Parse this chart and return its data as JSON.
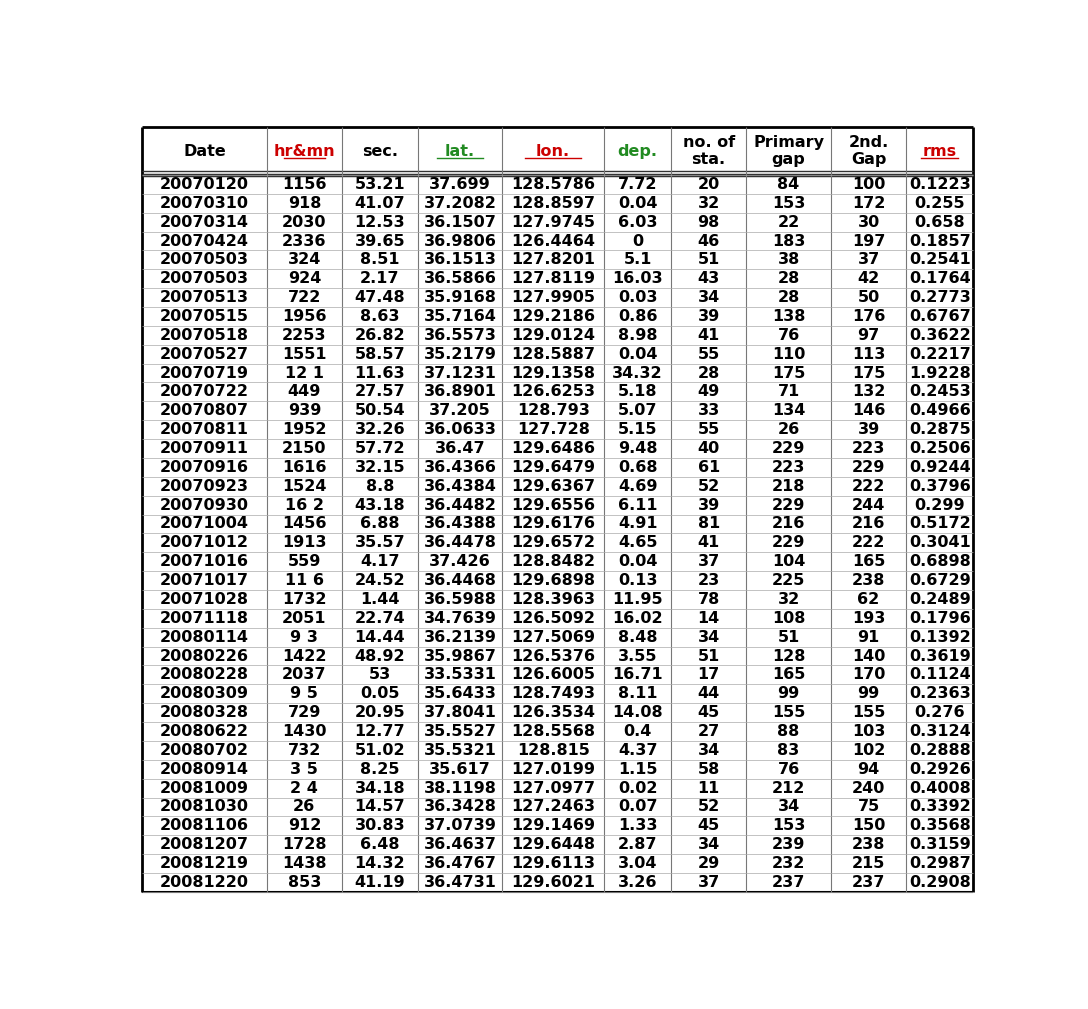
{
  "columns": [
    "Date",
    "hr&mn",
    "sec.",
    "lat.",
    "lon.",
    "dep.",
    "no. of\nsta.",
    "Primary\ngap",
    "2nd.\nGap",
    "rms"
  ],
  "col_keys": [
    "Date",
    "hr&mn",
    "sec.",
    "lat.",
    "lon.",
    "dep.",
    "no_of_sta",
    "Primary_gap",
    "2nd_Gap",
    "rms"
  ],
  "header_colors": [
    "black",
    "#cc0000",
    "black",
    "#228B22",
    "#cc0000",
    "#228B22",
    "black",
    "black",
    "black",
    "#cc0000"
  ],
  "header_underline": [
    false,
    true,
    false,
    true,
    true,
    false,
    false,
    false,
    false,
    true
  ],
  "col_widths_rel": [
    1.4,
    0.85,
    0.85,
    0.95,
    1.15,
    0.75,
    0.85,
    0.95,
    0.85,
    0.75
  ],
  "rows": [
    [
      "20070120",
      "1156",
      "53.21",
      "37.699",
      "128.5786",
      "7.72",
      "20",
      "84",
      "100",
      "0.1223"
    ],
    [
      "20070310",
      "918",
      "41.07",
      "37.2082",
      "128.8597",
      "0.04",
      "32",
      "153",
      "172",
      "0.255"
    ],
    [
      "20070314",
      "2030",
      "12.53",
      "36.1507",
      "127.9745",
      "6.03",
      "98",
      "22",
      "30",
      "0.658"
    ],
    [
      "20070424",
      "2336",
      "39.65",
      "36.9806",
      "126.4464",
      "0",
      "46",
      "183",
      "197",
      "0.1857"
    ],
    [
      "20070503",
      "324",
      "8.51",
      "36.1513",
      "127.8201",
      "5.1",
      "51",
      "38",
      "37",
      "0.2541"
    ],
    [
      "20070503",
      "924",
      "2.17",
      "36.5866",
      "127.8119",
      "16.03",
      "43",
      "28",
      "42",
      "0.1764"
    ],
    [
      "20070513",
      "722",
      "47.48",
      "35.9168",
      "127.9905",
      "0.03",
      "34",
      "28",
      "50",
      "0.2773"
    ],
    [
      "20070515",
      "1956",
      "8.63",
      "35.7164",
      "129.2186",
      "0.86",
      "39",
      "138",
      "176",
      "0.6767"
    ],
    [
      "20070518",
      "2253",
      "26.82",
      "36.5573",
      "129.0124",
      "8.98",
      "41",
      "76",
      "97",
      "0.3622"
    ],
    [
      "20070527",
      "1551",
      "58.57",
      "35.2179",
      "128.5887",
      "0.04",
      "55",
      "110",
      "113",
      "0.2217"
    ],
    [
      "20070719",
      "12 1",
      "11.63",
      "37.1231",
      "129.1358",
      "34.32",
      "28",
      "175",
      "175",
      "1.9228"
    ],
    [
      "20070722",
      "449",
      "27.57",
      "36.8901",
      "126.6253",
      "5.18",
      "49",
      "71",
      "132",
      "0.2453"
    ],
    [
      "20070807",
      "939",
      "50.54",
      "37.205",
      "128.793",
      "5.07",
      "33",
      "134",
      "146",
      "0.4966"
    ],
    [
      "20070811",
      "1952",
      "32.26",
      "36.0633",
      "127.728",
      "5.15",
      "55",
      "26",
      "39",
      "0.2875"
    ],
    [
      "20070911",
      "2150",
      "57.72",
      "36.47",
      "129.6486",
      "9.48",
      "40",
      "229",
      "223",
      "0.2506"
    ],
    [
      "20070916",
      "1616",
      "32.15",
      "36.4366",
      "129.6479",
      "0.68",
      "61",
      "223",
      "229",
      "0.9244"
    ],
    [
      "20070923",
      "1524",
      "8.8",
      "36.4384",
      "129.6367",
      "4.69",
      "52",
      "218",
      "222",
      "0.3796"
    ],
    [
      "20070930",
      "16 2",
      "43.18",
      "36.4482",
      "129.6556",
      "6.11",
      "39",
      "229",
      "244",
      "0.299"
    ],
    [
      "20071004",
      "1456",
      "6.88",
      "36.4388",
      "129.6176",
      "4.91",
      "81",
      "216",
      "216",
      "0.5172"
    ],
    [
      "20071012",
      "1913",
      "35.57",
      "36.4478",
      "129.6572",
      "4.65",
      "41",
      "229",
      "222",
      "0.3041"
    ],
    [
      "20071016",
      "559",
      "4.17",
      "37.426",
      "128.8482",
      "0.04",
      "37",
      "104",
      "165",
      "0.6898"
    ],
    [
      "20071017",
      "11 6",
      "24.52",
      "36.4468",
      "129.6898",
      "0.13",
      "23",
      "225",
      "238",
      "0.6729"
    ],
    [
      "20071028",
      "1732",
      "1.44",
      "36.5988",
      "128.3963",
      "11.95",
      "78",
      "32",
      "62",
      "0.2489"
    ],
    [
      "20071118",
      "2051",
      "22.74",
      "34.7639",
      "126.5092",
      "16.02",
      "14",
      "108",
      "193",
      "0.1796"
    ],
    [
      "20080114",
      "9 3",
      "14.44",
      "36.2139",
      "127.5069",
      "8.48",
      "34",
      "51",
      "91",
      "0.1392"
    ],
    [
      "20080226",
      "1422",
      "48.92",
      "35.9867",
      "126.5376",
      "3.55",
      "51",
      "128",
      "140",
      "0.3619"
    ],
    [
      "20080228",
      "2037",
      "53",
      "33.5331",
      "126.6005",
      "16.71",
      "17",
      "165",
      "170",
      "0.1124"
    ],
    [
      "20080309",
      "9 5",
      "0.05",
      "35.6433",
      "128.7493",
      "8.11",
      "44",
      "99",
      "99",
      "0.2363"
    ],
    [
      "20080328",
      "729",
      "20.95",
      "37.8041",
      "126.3534",
      "14.08",
      "45",
      "155",
      "155",
      "0.276"
    ],
    [
      "20080622",
      "1430",
      "12.77",
      "35.5527",
      "128.5568",
      "0.4",
      "27",
      "88",
      "103",
      "0.3124"
    ],
    [
      "20080702",
      "732",
      "51.02",
      "35.5321",
      "128.815",
      "4.37",
      "34",
      "83",
      "102",
      "0.2888"
    ],
    [
      "20080914",
      "3 5",
      "8.25",
      "35.617",
      "127.0199",
      "1.15",
      "58",
      "76",
      "94",
      "0.2926"
    ],
    [
      "20081009",
      "2 4",
      "34.18",
      "38.1198",
      "127.0977",
      "0.02",
      "11",
      "212",
      "240",
      "0.4008"
    ],
    [
      "20081030",
      "26",
      "14.57",
      "36.3428",
      "127.2463",
      "0.07",
      "52",
      "34",
      "75",
      "0.3392"
    ],
    [
      "20081106",
      "912",
      "30.83",
      "37.0739",
      "129.1469",
      "1.33",
      "45",
      "153",
      "150",
      "0.3568"
    ],
    [
      "20081207",
      "1728",
      "6.48",
      "36.4637",
      "129.6448",
      "2.87",
      "34",
      "239",
      "238",
      "0.3159"
    ],
    [
      "20081219",
      "1438",
      "14.32",
      "36.4767",
      "129.6113",
      "3.04",
      "29",
      "232",
      "215",
      "0.2987"
    ],
    [
      "20081220",
      "853",
      "41.19",
      "36.4731",
      "129.6021",
      "3.26",
      "37",
      "237",
      "237",
      "0.2908"
    ]
  ],
  "font_size": 11.5,
  "header_font_size": 11.5,
  "bg_color": "white",
  "line_color": "#777777",
  "header_line_color": "#333333"
}
